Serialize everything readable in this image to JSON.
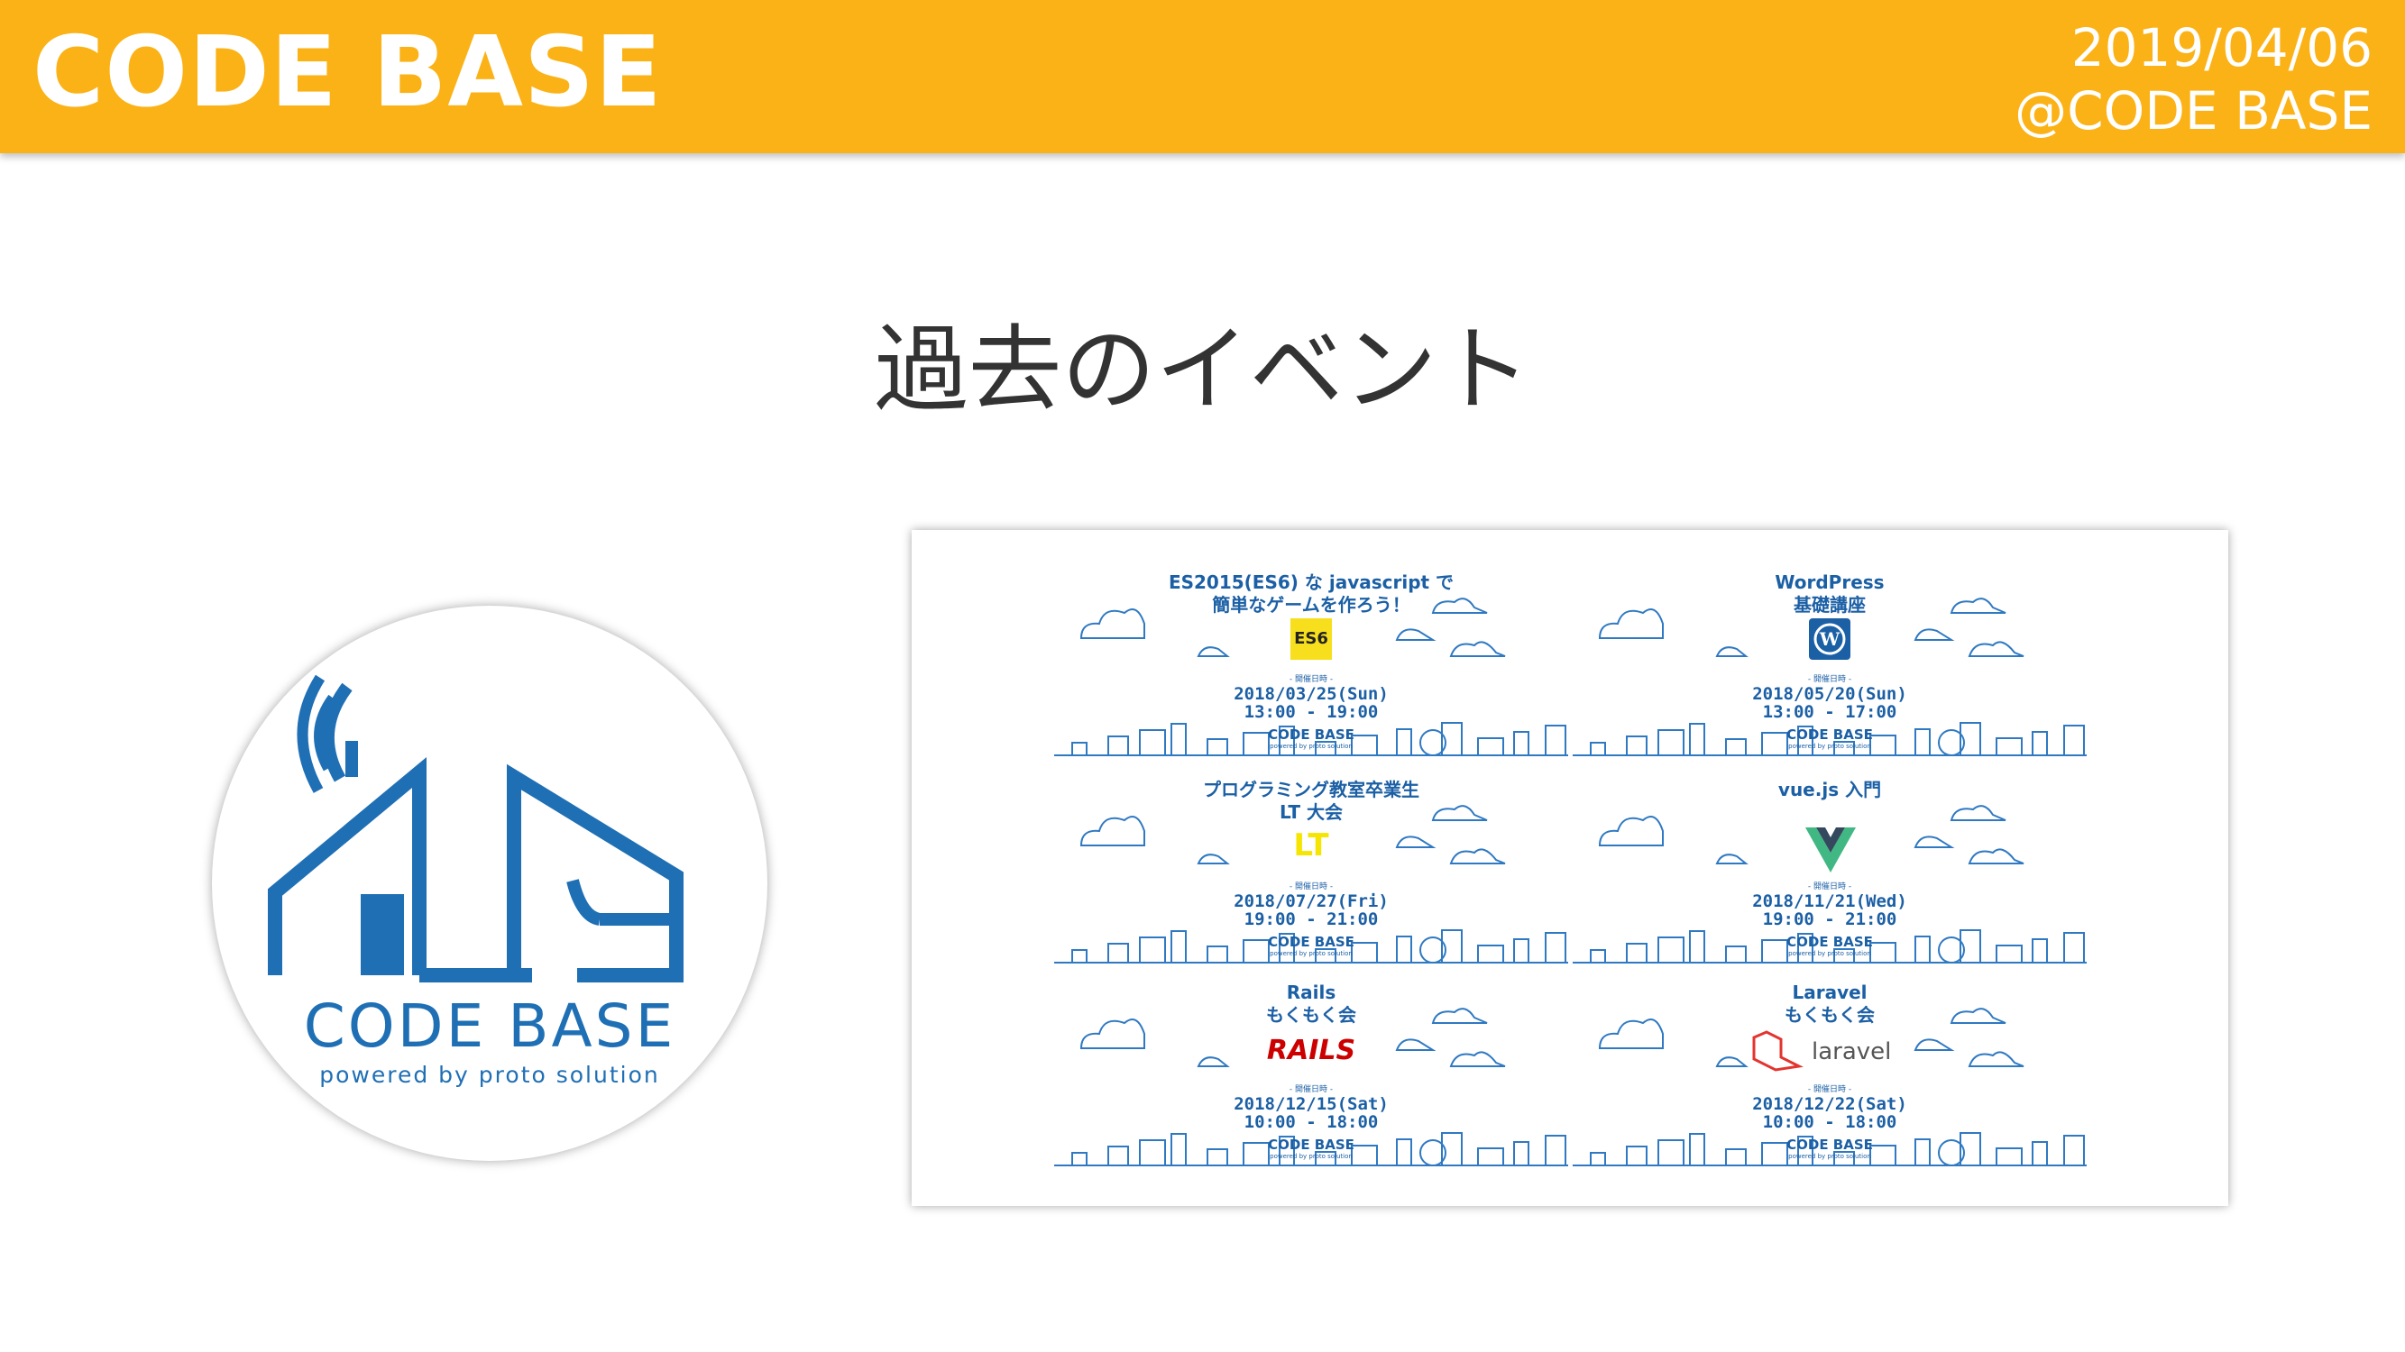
{
  "header": {
    "brand": "CODE BASE",
    "date": "2019/04/06",
    "venue": "@CODE BASE"
  },
  "title": "過去のイベント",
  "logo": {
    "name": "CODE BASE",
    "tagline": "powered by proto solution"
  },
  "colors": {
    "header": "#fbb216",
    "brand_blue": "#1f6fb5"
  },
  "events": [
    {
      "title_lines": [
        "ES2015(ES6) な javascript で",
        "簡単なゲームを作ろう！"
      ],
      "badge": "ES6",
      "note": "- 開催日時 -",
      "date": "2018/03/25(Sun)",
      "time": "13:00 - 19:00",
      "brand": "CODE BASE",
      "brand_sub": "powered by proto solution"
    },
    {
      "title_lines": [
        "WordPress",
        "基礎講座"
      ],
      "badge": "W",
      "note": "- 開催日時 -",
      "date": "2018/05/20(Sun)",
      "time": "13:00 - 17:00",
      "brand": "CODE BASE",
      "brand_sub": "powered by proto solution"
    },
    {
      "title_lines": [
        "プログラミング教室卒業生",
        "LT 大会"
      ],
      "badge": "LT",
      "note": "- 開催日時 -",
      "date": "2018/07/27(Fri)",
      "time": "19:00 - 21:00",
      "brand": "CODE BASE",
      "brand_sub": "powered by proto solution"
    },
    {
      "title_lines": [
        "vue.js 入門",
        ""
      ],
      "badge": "V",
      "note": "- 開催日時 -",
      "date": "2018/11/21(Wed)",
      "time": "19:00 - 21:00",
      "brand": "CODE BASE",
      "brand_sub": "powered by proto solution"
    },
    {
      "title_lines": [
        "Rails",
        "もくもく会"
      ],
      "badge": "RAILS",
      "note": "- 開催日時 -",
      "date": "2018/12/15(Sat)",
      "time": "10:00 - 18:00",
      "brand": "CODE BASE",
      "brand_sub": "powered by proto solution"
    },
    {
      "title_lines": [
        "Laravel",
        "もくもく会"
      ],
      "badge": "laravel",
      "note": "- 開催日時 -",
      "date": "2018/12/22(Sat)",
      "time": "10:00 - 18:00",
      "brand": "CODE BASE",
      "brand_sub": "powered by proto solution"
    }
  ]
}
